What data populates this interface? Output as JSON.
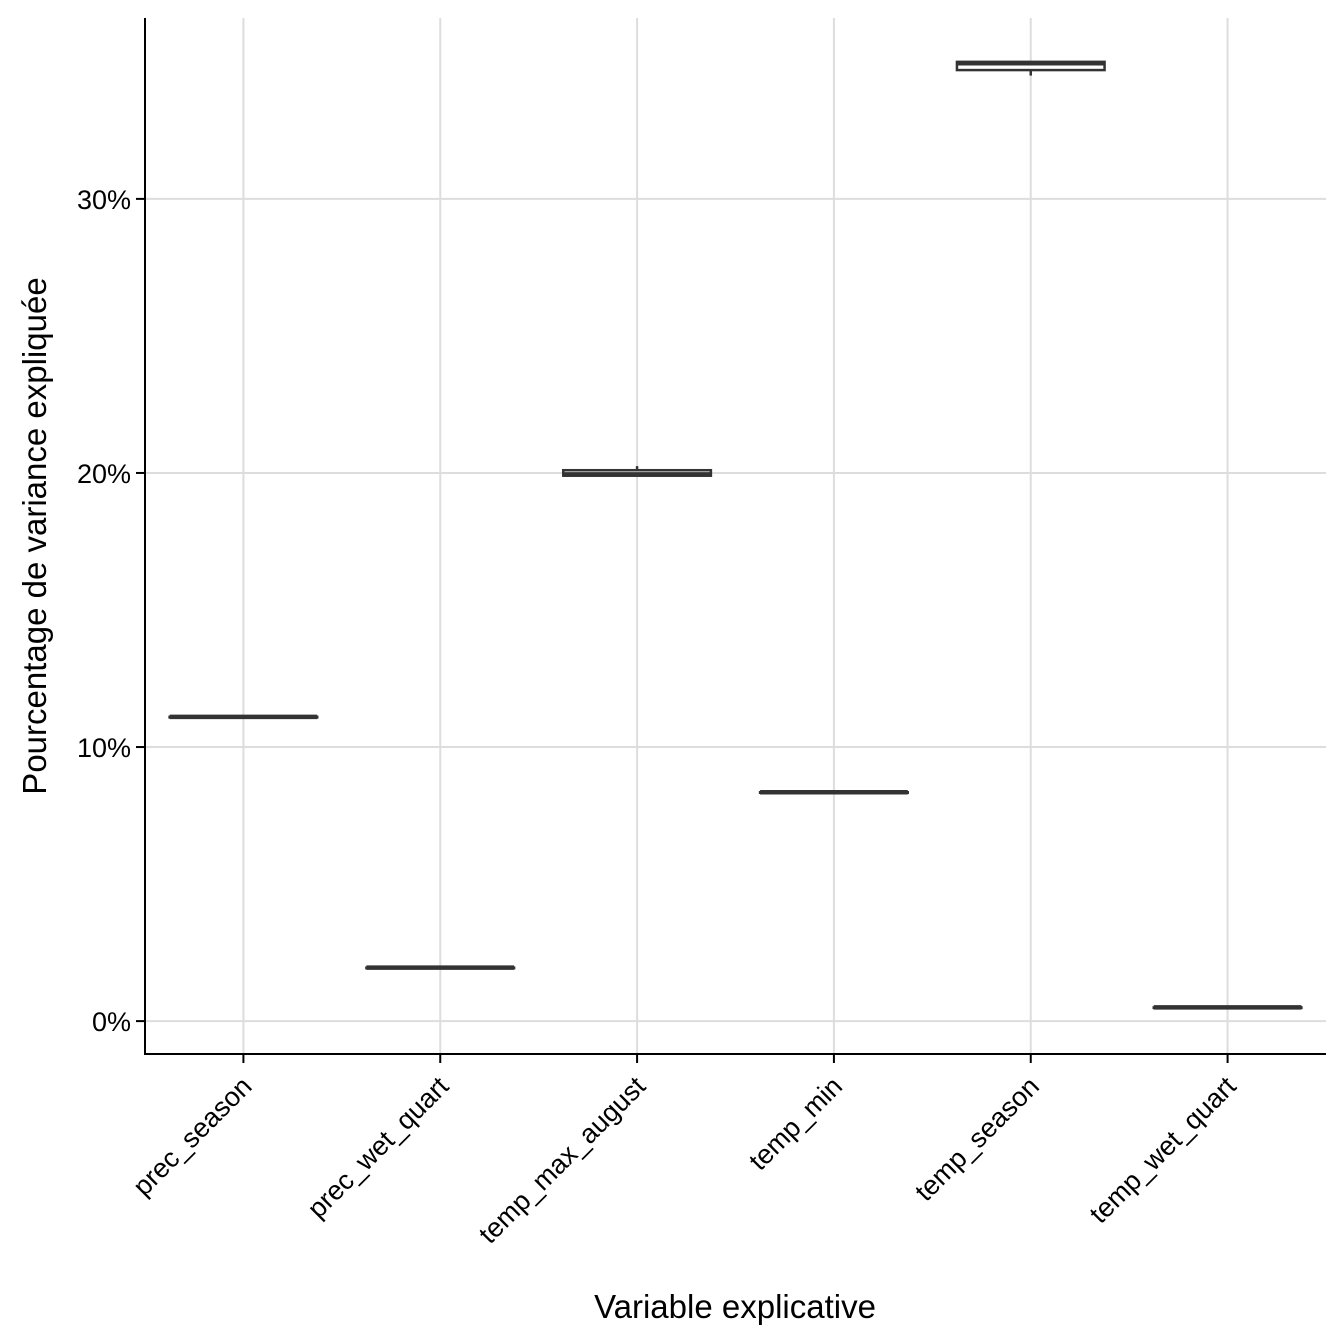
{
  "chart_data": {
    "type": "boxplot",
    "xlabel": "Variable explicative",
    "ylabel": "Pourcentage de variance expliquée",
    "ylim": [
      -1.2,
      36.6
    ],
    "yticks": [
      {
        "value": 0,
        "label": "0%"
      },
      {
        "value": 10,
        "label": "10%"
      },
      {
        "value": 20,
        "label": "20%"
      },
      {
        "value": 30,
        "label": "30%"
      }
    ],
    "categories": [
      "prec_season",
      "prec_wet_quart",
      "temp_max_august",
      "temp_min",
      "temp_season",
      "temp_wet_quart"
    ],
    "boxes": [
      {
        "category": "prec_season",
        "min": 11.1,
        "q1": 11.1,
        "median": 11.1,
        "q3": 11.1,
        "max": 11.1
      },
      {
        "category": "prec_wet_quart",
        "min": 1.95,
        "q1": 1.95,
        "median": 1.95,
        "q3": 1.95,
        "max": 1.95
      },
      {
        "category": "temp_max_august",
        "min": 19.9,
        "q1": 19.9,
        "median": 19.95,
        "q3": 20.1,
        "max": 20.25
      },
      {
        "category": "temp_min",
        "min": 8.35,
        "q1": 8.35,
        "median": 8.35,
        "q3": 8.35,
        "max": 8.35
      },
      {
        "category": "temp_season",
        "min": 34.5,
        "q1": 34.7,
        "median": 34.95,
        "q3": 35.0,
        "max": 35.0
      },
      {
        "category": "temp_wet_quart",
        "min": 0.5,
        "q1": 0.5,
        "median": 0.5,
        "q3": 0.5,
        "max": 0.5
      }
    ],
    "grid": true,
    "legend": "none"
  }
}
